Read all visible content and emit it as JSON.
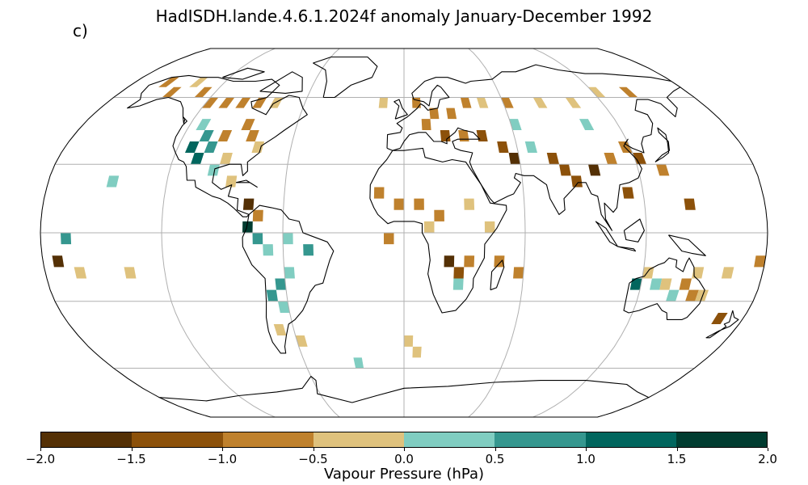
{
  "title": "HadISDH.lande.4.6.1.2024f anomaly January-December 1992",
  "panel_label": "c)",
  "colorbar": {
    "label": "Vapour Pressure (hPa)",
    "ticks": [
      "−2.0",
      "−1.5",
      "−1.0",
      "−0.5",
      "0.0",
      "0.5",
      "1.0",
      "1.5",
      "2.0"
    ],
    "bounds": [
      -2.0,
      -1.5,
      -1.0,
      -0.5,
      0.0,
      0.5,
      1.0,
      1.5,
      2.0
    ],
    "colors": [
      "#543005",
      "#8c510a",
      "#bf812d",
      "#dfc27d",
      "#80cdc1",
      "#35978f",
      "#01665e",
      "#003c30"
    ]
  },
  "map": {
    "projection": "Robinson",
    "gridlines": true,
    "grid_cell_deg": 5,
    "anomaly_cells": [
      {
        "lon": -160,
        "lat": 65,
        "v": -0.8
      },
      {
        "lon": -150,
        "lat": 60,
        "v": -0.7
      },
      {
        "lon": -140,
        "lat": 65,
        "v": -0.3
      },
      {
        "lon": -130,
        "lat": 60,
        "v": -0.8
      },
      {
        "lon": -120,
        "lat": 55,
        "v": -0.9
      },
      {
        "lon": -110,
        "lat": 55,
        "v": -0.8
      },
      {
        "lon": -100,
        "lat": 55,
        "v": -0.7
      },
      {
        "lon": -90,
        "lat": 55,
        "v": -0.6
      },
      {
        "lon": -80,
        "lat": 55,
        "v": -0.3
      },
      {
        "lon": -115,
        "lat": 45,
        "v": 0.3
      },
      {
        "lon": -110,
        "lat": 40,
        "v": 0.7
      },
      {
        "lon": -105,
        "lat": 35,
        "v": 0.8
      },
      {
        "lon": -115,
        "lat": 35,
        "v": 1.2
      },
      {
        "lon": -110,
        "lat": 30,
        "v": 1.1
      },
      {
        "lon": -100,
        "lat": 40,
        "v": -0.9
      },
      {
        "lon": -90,
        "lat": 45,
        "v": -0.8
      },
      {
        "lon": -85,
        "lat": 40,
        "v": -0.7
      },
      {
        "lon": -80,
        "lat": 35,
        "v": -0.4
      },
      {
        "lon": -95,
        "lat": 30,
        "v": -0.3
      },
      {
        "lon": -100,
        "lat": 25,
        "v": 0.3
      },
      {
        "lon": -90,
        "lat": 20,
        "v": -0.2
      },
      {
        "lon": -80,
        "lat": 10,
        "v": -1.6
      },
      {
        "lon": -75,
        "lat": 5,
        "v": -0.7
      },
      {
        "lon": -80,
        "lat": 0,
        "v": 1.8
      },
      {
        "lon": -75,
        "lat": -5,
        "v": 0.6
      },
      {
        "lon": -70,
        "lat": -10,
        "v": 0.4
      },
      {
        "lon": -60,
        "lat": -5,
        "v": 0.3
      },
      {
        "lon": -50,
        "lat": -10,
        "v": 0.7
      },
      {
        "lon": -60,
        "lat": -20,
        "v": 0.4
      },
      {
        "lon": -65,
        "lat": -25,
        "v": 0.8
      },
      {
        "lon": -70,
        "lat": -30,
        "v": 0.6
      },
      {
        "lon": -65,
        "lat": -35,
        "v": 0.3
      },
      {
        "lon": -70,
        "lat": -45,
        "v": -0.3
      },
      {
        "lon": -60,
        "lat": -50,
        "v": -0.2
      },
      {
        "lon": -150,
        "lat": 20,
        "v": 0.3
      },
      {
        "lon": -170,
        "lat": -5,
        "v": 0.7
      },
      {
        "lon": -175,
        "lat": -15,
        "v": -1.7
      },
      {
        "lon": -165,
        "lat": -20,
        "v": -0.4
      },
      {
        "lon": -140,
        "lat": -20,
        "v": -0.2
      },
      {
        "lon": -15,
        "lat": 55,
        "v": -0.3
      },
      {
        "lon": 5,
        "lat": 55,
        "v": -0.8
      },
      {
        "lon": 15,
        "lat": 50,
        "v": -0.7
      },
      {
        "lon": 25,
        "lat": 50,
        "v": -0.6
      },
      {
        "lon": 35,
        "lat": 55,
        "v": -0.8
      },
      {
        "lon": 45,
        "lat": 55,
        "v": -0.5
      },
      {
        "lon": 60,
        "lat": 55,
        "v": -0.7
      },
      {
        "lon": 80,
        "lat": 55,
        "v": -0.3
      },
      {
        "lon": 100,
        "lat": 55,
        "v": -0.3
      },
      {
        "lon": 120,
        "lat": 60,
        "v": -0.4
      },
      {
        "lon": 140,
        "lat": 60,
        "v": -0.6
      },
      {
        "lon": 10,
        "lat": 45,
        "v": -0.9
      },
      {
        "lon": 20,
        "lat": 40,
        "v": -1.1
      },
      {
        "lon": 30,
        "lat": 40,
        "v": -0.8
      },
      {
        "lon": 40,
        "lat": 40,
        "v": -1.2
      },
      {
        "lon": 50,
        "lat": 35,
        "v": -1.4
      },
      {
        "lon": 55,
        "lat": 30,
        "v": -1.6
      },
      {
        "lon": 65,
        "lat": 35,
        "v": 0.3
      },
      {
        "lon": 75,
        "lat": 30,
        "v": -1.1
      },
      {
        "lon": 80,
        "lat": 25,
        "v": -1.3
      },
      {
        "lon": 85,
        "lat": 20,
        "v": -1.2
      },
      {
        "lon": 95,
        "lat": 25,
        "v": -1.6
      },
      {
        "lon": 105,
        "lat": 30,
        "v": -0.9
      },
      {
        "lon": 115,
        "lat": 35,
        "v": -0.7
      },
      {
        "lon": 120,
        "lat": 30,
        "v": -1.1
      },
      {
        "lon": 130,
        "lat": 25,
        "v": -0.8
      },
      {
        "lon": 110,
        "lat": 15,
        "v": -1.2
      },
      {
        "lon": 140,
        "lat": 10,
        "v": -1.2
      },
      {
        "lon": 100,
        "lat": 45,
        "v": 0.3
      },
      {
        "lon": 60,
        "lat": 45,
        "v": 0.4
      },
      {
        "lon": -5,
        "lat": 10,
        "v": -0.8
      },
      {
        "lon": 5,
        "lat": 10,
        "v": -0.6
      },
      {
        "lon": 15,
        "lat": 5,
        "v": -0.7
      },
      {
        "lon": 30,
        "lat": 10,
        "v": -0.4
      },
      {
        "lon": -15,
        "lat": 15,
        "v": -1.0
      },
      {
        "lon": 20,
        "lat": -15,
        "v": -1.6
      },
      {
        "lon": 25,
        "lat": -20,
        "v": -1.2
      },
      {
        "lon": 30,
        "lat": -15,
        "v": -1.0
      },
      {
        "lon": 25,
        "lat": -25,
        "v": 0.3
      },
      {
        "lon": 40,
        "lat": 0,
        "v": -0.3
      },
      {
        "lon": 10,
        "lat": 0,
        "v": -0.3
      },
      {
        "lon": -10,
        "lat": -5,
        "v": -0.8
      },
      {
        "lon": 45,
        "lat": -15,
        "v": -0.7
      },
      {
        "lon": 55,
        "lat": -20,
        "v": -0.8
      },
      {
        "lon": 120,
        "lat": -20,
        "v": -0.4
      },
      {
        "lon": 125,
        "lat": -25,
        "v": 0.4
      },
      {
        "lon": 115,
        "lat": -25,
        "v": 1.1
      },
      {
        "lon": 130,
        "lat": -25,
        "v": -0.3
      },
      {
        "lon": 140,
        "lat": -25,
        "v": -0.8
      },
      {
        "lon": 145,
        "lat": -30,
        "v": -0.6
      },
      {
        "lon": 150,
        "lat": -30,
        "v": -0.4
      },
      {
        "lon": 135,
        "lat": -30,
        "v": 0.4
      },
      {
        "lon": 145,
        "lat": -20,
        "v": -0.3
      },
      {
        "lon": 165,
        "lat": -40,
        "v": -1.1
      },
      {
        "lon": 160,
        "lat": -20,
        "v": -0.4
      },
      {
        "lon": 175,
        "lat": -15,
        "v": -0.7
      },
      {
        "lon": 0,
        "lat": -50,
        "v": -0.3
      },
      {
        "lon": 5,
        "lat": -55,
        "v": -0.3
      },
      {
        "lon": -30,
        "lat": -60,
        "v": 0.3
      }
    ]
  }
}
